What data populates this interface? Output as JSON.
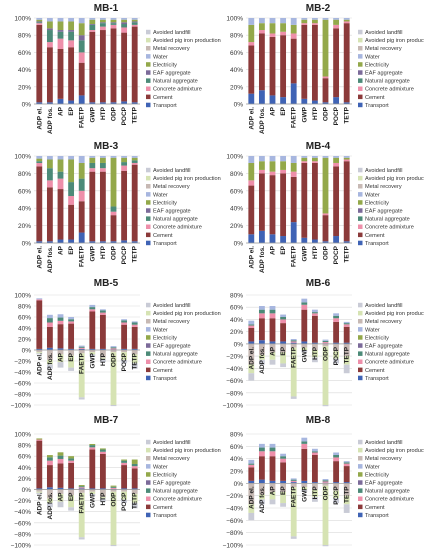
{
  "figure": {
    "categories": [
      "ADP el.",
      "ADP fos.",
      "AP",
      "EP",
      "FAETP",
      "GWP",
      "HTP",
      "ODP",
      "POCP",
      "TETP"
    ],
    "legend_labels": [
      "Avoided landfill",
      "Avoided pig iron production",
      "Metal recovery",
      "Water",
      "Electricity",
      "EAF aggregate",
      "Natural aggregate",
      "Concrete admixture",
      "Cement",
      "Transport"
    ],
    "legend_colors": [
      "#c9cbd6",
      "#d6e3b3",
      "#c7b9b4",
      "#a7b6df",
      "#93a84a",
      "#7b6a99",
      "#4c8a78",
      "#ee8faa",
      "#8b3a3a",
      "#3f63b5"
    ]
  },
  "chart_data": [
    {
      "type": "bar",
      "title": "MB-1",
      "ylim": [
        0,
        100
      ],
      "yticks": [
        "0%",
        "20%",
        "40%",
        "60%",
        "80%",
        "100%"
      ],
      "categories": [
        "ADP el.",
        "ADP fos.",
        "AP",
        "EP",
        "FAETP",
        "GWP",
        "HTP",
        "ODP",
        "POCP",
        "TETP"
      ],
      "series": [
        {
          "name": "Transport",
          "values": [
            2,
            2,
            6,
            4,
            10,
            2,
            2,
            2,
            3,
            2
          ]
        },
        {
          "name": "Cement",
          "values": [
            90,
            64,
            58,
            62,
            38,
            82,
            84,
            86,
            80,
            88
          ]
        },
        {
          "name": "Concrete admixture",
          "values": [
            2,
            6,
            12,
            8,
            12,
            2,
            4,
            4,
            6,
            2
          ]
        },
        {
          "name": "Natural aggregate",
          "values": [
            1,
            14,
            8,
            10,
            14,
            6,
            4,
            2,
            4,
            3
          ]
        },
        {
          "name": "EAF aggregate",
          "values": [
            1,
            2,
            2,
            2,
            6,
            1,
            1,
            1,
            2,
            1
          ]
        },
        {
          "name": "Electricity",
          "values": [
            2,
            8,
            10,
            10,
            14,
            5,
            3,
            3,
            3,
            2
          ]
        },
        {
          "name": "Water",
          "values": [
            2,
            4,
            4,
            4,
            6,
            2,
            2,
            2,
            2,
            2
          ]
        }
      ]
    },
    {
      "type": "bar",
      "title": "MB-2",
      "ylim": [
        0,
        100
      ],
      "yticks": [
        "0%",
        "20%",
        "40%",
        "60%",
        "80%",
        "100%"
      ],
      "categories": [
        "ADP el.",
        "ADP fos.",
        "AP",
        "EP",
        "FAETP",
        "GWP",
        "HTP",
        "ODP",
        "POCP",
        "TETP"
      ],
      "series": [
        {
          "name": "Transport",
          "values": [
            12,
            16,
            10,
            8,
            24,
            6,
            4,
            2,
            8,
            2
          ]
        },
        {
          "name": "Cement",
          "values": [
            56,
            66,
            68,
            72,
            52,
            86,
            88,
            28,
            80,
            92
          ]
        },
        {
          "name": "Concrete admixture",
          "values": [
            4,
            4,
            4,
            4,
            6,
            2,
            2,
            2,
            4,
            2
          ]
        },
        {
          "name": "Electricity",
          "values": [
            20,
            8,
            12,
            10,
            10,
            4,
            4,
            66,
            6,
            2
          ]
        },
        {
          "name": "Water",
          "values": [
            8,
            6,
            6,
            6,
            8,
            2,
            2,
            2,
            2,
            2
          ]
        }
      ]
    },
    {
      "type": "bar",
      "title": "MB-3",
      "ylim": [
        0,
        100
      ],
      "yticks": [
        "0%",
        "20%",
        "40%",
        "60%",
        "80%",
        "100%"
      ],
      "categories": [
        "ADP el.",
        "ADP fos.",
        "AP",
        "EP",
        "FAETP",
        "GWP",
        "HTP",
        "ODP",
        "POCP",
        "TETP"
      ],
      "series": [
        {
          "name": "Transport",
          "values": [
            2,
            2,
            4,
            4,
            12,
            2,
            2,
            2,
            3,
            2
          ]
        },
        {
          "name": "Cement",
          "values": [
            86,
            62,
            58,
            40,
            36,
            80,
            80,
            30,
            80,
            88
          ]
        },
        {
          "name": "Concrete admixture",
          "values": [
            4,
            8,
            12,
            10,
            12,
            4,
            4,
            4,
            6,
            2
          ]
        },
        {
          "name": "Natural aggregate",
          "values": [
            2,
            14,
            8,
            16,
            14,
            6,
            6,
            6,
            4,
            3
          ]
        },
        {
          "name": "Electricity",
          "values": [
            3,
            10,
            14,
            26,
            18,
            6,
            6,
            56,
            5,
            3
          ]
        },
        {
          "name": "Water",
          "values": [
            3,
            4,
            4,
            4,
            8,
            2,
            2,
            2,
            2,
            2
          ]
        }
      ]
    },
    {
      "type": "bar",
      "title": "MB-4",
      "ylim": [
        0,
        100
      ],
      "yticks": [
        "0%",
        "20%",
        "40%",
        "60%",
        "80%",
        "100%"
      ],
      "categories": [
        "ADP el.",
        "ADP fos.",
        "AP",
        "EP",
        "FAETP",
        "GWP",
        "HTP",
        "ODP",
        "POCP",
        "TETP"
      ],
      "series": [
        {
          "name": "Transport",
          "values": [
            10,
            14,
            10,
            8,
            24,
            6,
            4,
            2,
            8,
            2
          ]
        },
        {
          "name": "Cement",
          "values": [
            56,
            66,
            68,
            72,
            52,
            86,
            88,
            30,
            80,
            92
          ]
        },
        {
          "name": "Concrete admixture",
          "values": [
            6,
            4,
            4,
            4,
            6,
            2,
            2,
            2,
            4,
            2
          ]
        },
        {
          "name": "Electricity",
          "values": [
            20,
            10,
            12,
            10,
            10,
            4,
            4,
            64,
            6,
            2
          ]
        },
        {
          "name": "Water",
          "values": [
            8,
            6,
            6,
            6,
            8,
            2,
            2,
            2,
            2,
            2
          ]
        }
      ]
    },
    {
      "type": "bar",
      "title": "MB-5",
      "ylim": [
        -100,
        100
      ],
      "yticks": [
        "−100%",
        "−80%",
        "−60%",
        "−40%",
        "−20%",
        "0%",
        "20%",
        "40%",
        "60%",
        "80%",
        "100%"
      ],
      "categories": [
        "ADP el.",
        "ADP fos.",
        "AP",
        "EP",
        "FAETP",
        "GWP",
        "HTP",
        "ODP",
        "POCP",
        "TETP"
      ],
      "series": [
        {
          "name": "Transport",
          "values": [
            2,
            4,
            3,
            2,
            2,
            2,
            2,
            1,
            2,
            2
          ]
        },
        {
          "name": "Cement",
          "values": [
            88,
            38,
            44,
            46,
            0,
            68,
            62,
            0,
            44,
            40
          ]
        },
        {
          "name": "Concrete admixture",
          "values": [
            2,
            8,
            6,
            4,
            2,
            4,
            4,
            2,
            4,
            4
          ]
        },
        {
          "name": "Natural aggregate",
          "values": [
            0,
            8,
            6,
            4,
            2,
            4,
            4,
            2,
            4,
            4
          ]
        },
        {
          "name": "Water",
          "values": [
            2,
            6,
            6,
            4,
            2,
            4,
            2,
            2,
            2,
            2
          ]
        },
        {
          "name": "Metal recovery",
          "values": [
            -4,
            -18,
            -8,
            -10,
            -6,
            -4,
            -14,
            -4,
            -4,
            -8
          ]
        },
        {
          "name": "Avoided pig iron production",
          "values": [
            -2,
            -8,
            -14,
            -22,
            -80,
            -4,
            -2,
            -96,
            -14,
            -16
          ]
        },
        {
          "name": "Avoided landfill",
          "values": [
            -2,
            -8,
            -10,
            -6,
            -4,
            -4,
            -6,
            -2,
            -6,
            -10
          ]
        }
      ]
    },
    {
      "type": "bar",
      "title": "MB-6",
      "ylim": [
        -100,
        80
      ],
      "yticks": [
        "−100%",
        "−80%",
        "−60%",
        "−40%",
        "−20%",
        "0%",
        "20%",
        "40%",
        "60%",
        "80%"
      ],
      "categories": [
        "ADP el.",
        "ADP fos.",
        "AP",
        "EP",
        "FAETP",
        "GWP",
        "HTP",
        "ODP",
        "POCP",
        "TETP"
      ],
      "series": [
        {
          "name": "Transport",
          "values": [
            4,
            6,
            4,
            4,
            2,
            4,
            2,
            1,
            2,
            2
          ]
        },
        {
          "name": "Cement",
          "values": [
            22,
            36,
            38,
            30,
            0,
            52,
            44,
            0,
            34,
            26
          ]
        },
        {
          "name": "Concrete admixture",
          "values": [
            4,
            8,
            8,
            6,
            2,
            8,
            4,
            2,
            6,
            4
          ]
        },
        {
          "name": "Natural aggregate",
          "values": [
            2,
            6,
            6,
            4,
            2,
            4,
            2,
            2,
            4,
            2
          ]
        },
        {
          "name": "Water",
          "values": [
            6,
            6,
            6,
            4,
            2,
            6,
            4,
            2,
            4,
            2
          ]
        },
        {
          "name": "Metal recovery",
          "values": [
            -34,
            -18,
            -14,
            -14,
            -6,
            -6,
            -10,
            -4,
            -12,
            -20
          ]
        },
        {
          "name": "Avoided pig iron production",
          "values": [
            -14,
            -8,
            -12,
            -18,
            -80,
            -4,
            -12,
            -96,
            -12,
            -14
          ]
        },
        {
          "name": "Avoided landfill",
          "values": [
            -12,
            -8,
            -8,
            -6,
            -4,
            -4,
            -8,
            -2,
            -8,
            -14
          ]
        }
      ]
    },
    {
      "type": "bar",
      "title": "MB-7",
      "ylim": [
        -100,
        100
      ],
      "yticks": [
        "−100%",
        "−80%",
        "−60%",
        "−40%",
        "−20%",
        "0%",
        "20%",
        "40%",
        "60%",
        "80%",
        "100%"
      ],
      "categories": [
        "ADP el.",
        "ADP fos.",
        "AP",
        "EP",
        "FAETP",
        "GWP",
        "HTP",
        "ODP",
        "POCP",
        "TETP"
      ],
      "series": [
        {
          "name": "Transport",
          "values": [
            2,
            4,
            3,
            2,
            2,
            2,
            2,
            1,
            2,
            2
          ]
        },
        {
          "name": "Cement",
          "values": [
            86,
            40,
            44,
            46,
            0,
            70,
            62,
            0,
            42,
            36
          ]
        },
        {
          "name": "Concrete admixture",
          "values": [
            2,
            8,
            8,
            4,
            2,
            4,
            4,
            2,
            4,
            4
          ]
        },
        {
          "name": "Natural aggregate",
          "values": [
            0,
            6,
            6,
            4,
            2,
            4,
            4,
            2,
            4,
            4
          ]
        },
        {
          "name": "Electricity",
          "values": [
            2,
            4,
            6,
            4,
            2,
            2,
            2,
            2,
            2,
            8
          ]
        },
        {
          "name": "Metal recovery",
          "values": [
            -4,
            -16,
            -8,
            -10,
            -6,
            -4,
            -14,
            -4,
            -4,
            -8
          ]
        },
        {
          "name": "Avoided pig iron production",
          "values": [
            -2,
            -8,
            -14,
            -22,
            -80,
            -4,
            -2,
            -96,
            -14,
            -16
          ]
        },
        {
          "name": "Avoided landfill",
          "values": [
            -2,
            -8,
            -10,
            -6,
            -4,
            -4,
            -6,
            -2,
            -6,
            -10
          ]
        }
      ]
    },
    {
      "type": "bar",
      "title": "MB-8",
      "ylim": [
        -100,
        80
      ],
      "yticks": [
        "−100%",
        "−80%",
        "−60%",
        "−40%",
        "−20%",
        "0%",
        "20%",
        "40%",
        "60%",
        "80%"
      ],
      "categories": [
        "ADP el.",
        "ADP fos.",
        "AP",
        "EP",
        "FAETP",
        "GWP",
        "HTP",
        "ODP",
        "POCP",
        "TETP"
      ],
      "series": [
        {
          "name": "Transport",
          "values": [
            4,
            6,
            4,
            4,
            2,
            4,
            2,
            1,
            2,
            2
          ]
        },
        {
          "name": "Cement",
          "values": [
            22,
            38,
            40,
            30,
            0,
            52,
            44,
            0,
            34,
            26
          ]
        },
        {
          "name": "Concrete admixture",
          "values": [
            4,
            8,
            8,
            6,
            2,
            8,
            4,
            2,
            6,
            4
          ]
        },
        {
          "name": "Natural aggregate",
          "values": [
            2,
            6,
            6,
            4,
            2,
            4,
            2,
            2,
            4,
            2
          ]
        },
        {
          "name": "Water",
          "values": [
            6,
            6,
            6,
            4,
            2,
            6,
            4,
            2,
            4,
            2
          ]
        },
        {
          "name": "Metal recovery",
          "values": [
            -34,
            -18,
            -14,
            -14,
            -6,
            -6,
            -10,
            -4,
            -12,
            -20
          ]
        },
        {
          "name": "Avoided pig iron production",
          "values": [
            -14,
            -8,
            -12,
            -18,
            -80,
            -4,
            -12,
            -96,
            -12,
            -14
          ]
        },
        {
          "name": "Avoided landfill",
          "values": [
            -12,
            -8,
            -8,
            -6,
            -4,
            -4,
            -8,
            -2,
            -8,
            -14
          ]
        }
      ]
    }
  ]
}
